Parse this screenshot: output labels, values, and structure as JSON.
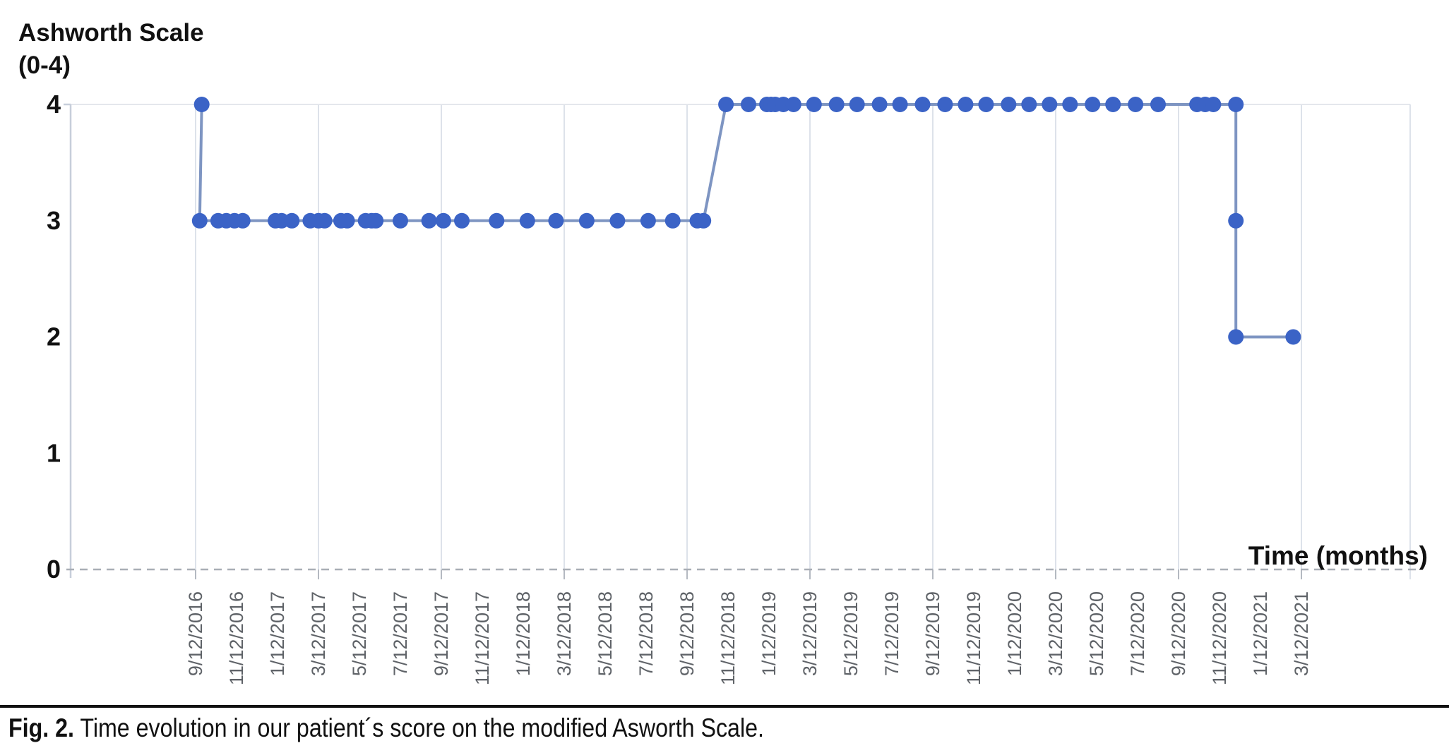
{
  "chart_data": {
    "type": "line",
    "y_axis_title_lines": [
      "Ashworth Scale",
      "(0-4)"
    ],
    "x_axis_title": "Time (months)",
    "y_ticks": [
      0,
      1,
      2,
      3,
      4
    ],
    "ylim": [
      0,
      4
    ],
    "x_tick_step_months": 2,
    "gridline_every_n_ticks": 3,
    "grid_on": "vertical-only",
    "legend": "none",
    "point_color": "#3B63C6",
    "line_color": "#7E95C2",
    "x_tick_labels": [
      "9/12/2016",
      "11/12/2016",
      "1/12/2017",
      "3/12/2017",
      "5/12/2017",
      "7/12/2017",
      "9/12/2017",
      "11/12/2017",
      "1/12/2018",
      "3/12/2018",
      "5/12/2018",
      "7/12/2018",
      "9/12/2018",
      "11/12/2018",
      "1/12/2019",
      "3/12/2019",
      "5/12/2019",
      "7/12/2019",
      "9/12/2019",
      "11/12/2019",
      "1/12/2020",
      "3/12/2020",
      "5/12/2020",
      "7/12/2020",
      "9/12/2020",
      "11/12/2020",
      "1/12/2021",
      "3/12/2021"
    ],
    "series": [
      {
        "name": "Modified Ashworth Scale score",
        "x_unit": "months since 9/12/2016",
        "points": [
          [
            0.3,
            4
          ],
          [
            0.2,
            3
          ],
          [
            1.1,
            3
          ],
          [
            1.5,
            3
          ],
          [
            1.9,
            3
          ],
          [
            2.3,
            3
          ],
          [
            3.9,
            3
          ],
          [
            4.2,
            3
          ],
          [
            4.7,
            3
          ],
          [
            5.6,
            3
          ],
          [
            6.0,
            3
          ],
          [
            6.3,
            3
          ],
          [
            7.1,
            3
          ],
          [
            7.4,
            3
          ],
          [
            8.3,
            3
          ],
          [
            8.6,
            3
          ],
          [
            8.8,
            3
          ],
          [
            10.0,
            3
          ],
          [
            11.4,
            3
          ],
          [
            12.1,
            3
          ],
          [
            13.0,
            3
          ],
          [
            14.7,
            3
          ],
          [
            16.2,
            3
          ],
          [
            17.6,
            3
          ],
          [
            19.1,
            3
          ],
          [
            20.6,
            3
          ],
          [
            22.1,
            3
          ],
          [
            23.3,
            3
          ],
          [
            24.5,
            3
          ],
          [
            24.8,
            3
          ],
          [
            25.9,
            4
          ],
          [
            27.0,
            4
          ],
          [
            27.9,
            4
          ],
          [
            28.1,
            4
          ],
          [
            28.3,
            4
          ],
          [
            28.7,
            4
          ],
          [
            29.2,
            4
          ],
          [
            30.2,
            4
          ],
          [
            31.3,
            4
          ],
          [
            32.3,
            4
          ],
          [
            33.4,
            4
          ],
          [
            34.4,
            4
          ],
          [
            35.5,
            4
          ],
          [
            36.6,
            4
          ],
          [
            37.6,
            4
          ],
          [
            38.6,
            4
          ],
          [
            39.7,
            4
          ],
          [
            40.7,
            4
          ],
          [
            41.7,
            4
          ],
          [
            42.7,
            4
          ],
          [
            43.8,
            4
          ],
          [
            44.8,
            4
          ],
          [
            45.9,
            4
          ],
          [
            47.0,
            4
          ],
          [
            48.9,
            4
          ],
          [
            49.3,
            4
          ],
          [
            49.7,
            4
          ],
          [
            50.8,
            4
          ],
          [
            50.8,
            3
          ],
          [
            50.8,
            2
          ],
          [
            53.6,
            2
          ]
        ]
      }
    ]
  },
  "caption": {
    "label": "Fig. 2.",
    "text": " Time evolution in our patient´s score on the modified Asworth Scale."
  }
}
